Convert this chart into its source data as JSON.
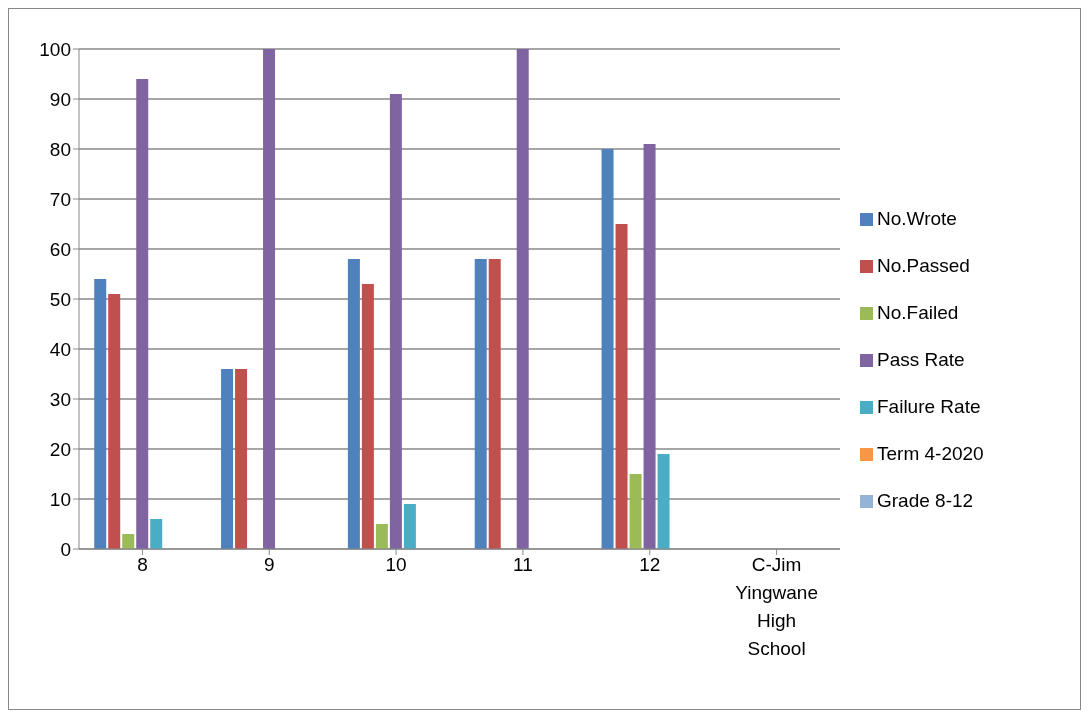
{
  "chart_data": {
    "type": "bar",
    "categories": [
      "8",
      "9",
      "10",
      "11",
      "12",
      "C-Jim Yingwane High School"
    ],
    "series": [
      {
        "name": "No.Wrote",
        "color": "#4f81bd",
        "values": [
          54,
          36,
          58,
          58,
          80,
          null
        ]
      },
      {
        "name": "No.Passed",
        "color": "#c0504d",
        "values": [
          51,
          36,
          53,
          58,
          65,
          null
        ]
      },
      {
        "name": "No.Failed",
        "color": "#9bbb59",
        "values": [
          3,
          0,
          5,
          0,
          15,
          null
        ]
      },
      {
        "name": "Pass Rate",
        "color": "#8064a2",
        "values": [
          94,
          100,
          91,
          100,
          81,
          null
        ]
      },
      {
        "name": "Failure Rate",
        "color": "#4bacc6",
        "values": [
          6,
          0,
          9,
          0,
          19,
          null
        ]
      },
      {
        "name": "Term 4-2020",
        "color": "#f79646",
        "values": [
          null,
          null,
          null,
          null,
          null,
          null
        ]
      },
      {
        "name": "Grade 8-12",
        "color": "#95b3d7",
        "values": [
          null,
          null,
          null,
          null,
          null,
          null
        ]
      }
    ],
    "ylim": [
      0,
      100
    ],
    "yticks": [
      0,
      10,
      20,
      30,
      40,
      50,
      60,
      70,
      80,
      90,
      100
    ],
    "grid": "y",
    "legend": "right"
  }
}
